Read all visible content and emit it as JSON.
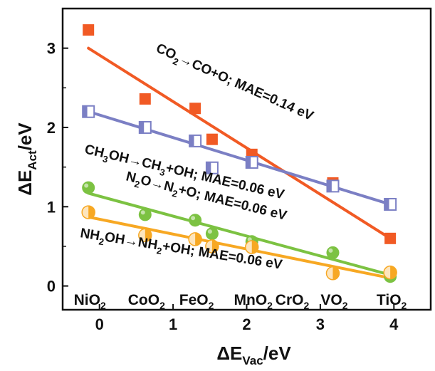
{
  "chart_data": {
    "type": "scatter",
    "xlabel": {
      "main": "ΔE",
      "sub": "Vac",
      "tail": "/eV"
    },
    "ylabel": {
      "main": "ΔE",
      "sub": "Act",
      "tail": "/eV"
    },
    "xlim": [
      -0.5,
      4.5
    ],
    "ylim": [
      -0.3,
      3.5
    ],
    "xticks": [
      "0",
      "1",
      "2",
      "3",
      "4"
    ],
    "yticks": [
      "0",
      "1",
      "2",
      "3"
    ],
    "grid": false,
    "categories": [
      {
        "name": "NiO",
        "sub": "2",
        "x": -0.15
      },
      {
        "name": "CoO",
        "sub": "2",
        "x": 0.62
      },
      {
        "name": "FeO",
        "sub": "2",
        "x": 1.3
      },
      {
        "name": "MnO",
        "sub": "2",
        "x": 2.07
      },
      {
        "name": "CrO",
        "sub": "2",
        "x": 2.6
      },
      {
        "name": "VO",
        "sub": "2",
        "x": 3.17
      },
      {
        "name": "TiO",
        "sub": "2",
        "x": 3.95
      }
    ],
    "series": [
      {
        "key": "co2",
        "color": "#f15a24",
        "marker": "square-filled",
        "x": [
          -0.15,
          0.62,
          1.3,
          1.53,
          2.07,
          3.17,
          3.95
        ],
        "y": [
          3.23,
          2.36,
          2.24,
          1.85,
          1.66,
          1.3,
          0.6
        ],
        "fit": [
          [
            -0.15,
            3.0
          ],
          [
            3.95,
            0.6
          ]
        ],
        "annotation": [
          "CO",
          "2",
          "→CO+O; MAE=0.14 eV"
        ]
      },
      {
        "key": "ch3oh",
        "color": "#7b7fc4",
        "marker": "square-half",
        "x": [
          -0.15,
          0.62,
          1.3,
          1.53,
          2.07,
          3.17,
          3.95
        ],
        "y": [
          2.2,
          2.0,
          1.83,
          1.49,
          1.56,
          1.26,
          1.03
        ],
        "fit": [
          [
            -0.15,
            2.2
          ],
          [
            3.95,
            1.03
          ]
        ],
        "annotation": [
          "CH",
          "3",
          "OH→CH",
          "3",
          "+OH; MAE=0.06 eV"
        ]
      },
      {
        "key": "n2o",
        "color": "#7cc242",
        "marker": "circle-filled",
        "x": [
          -0.15,
          0.62,
          1.3,
          1.53,
          2.07,
          3.17,
          3.95
        ],
        "y": [
          1.24,
          0.9,
          0.83,
          0.66,
          0.56,
          0.42,
          0.12
        ],
        "fit": [
          [
            -0.15,
            1.17
          ],
          [
            3.95,
            0.14
          ]
        ],
        "annotation": [
          "N",
          "2",
          "O→N",
          "2",
          "+O; MAE=0.06 eV"
        ]
      },
      {
        "key": "nh2oh",
        "color": "#f7a823",
        "marker": "circle-half",
        "x": [
          -0.15,
          0.62,
          1.3,
          1.53,
          2.07,
          3.17,
          3.95
        ],
        "y": [
          0.93,
          0.64,
          0.59,
          0.5,
          0.49,
          0.16,
          0.17
        ],
        "fit": [
          [
            -0.15,
            0.87
          ],
          [
            3.95,
            0.1
          ]
        ],
        "annotation": [
          "NH",
          "2",
          "OH→NH",
          "2",
          "+OH; MAE=0.06 eV"
        ]
      }
    ]
  }
}
